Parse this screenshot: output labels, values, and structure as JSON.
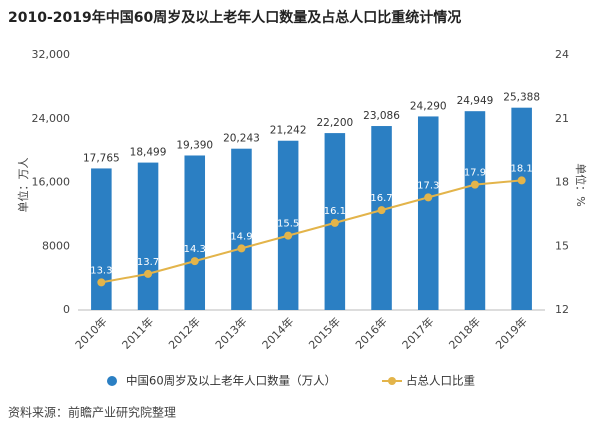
{
  "chart_data": {
    "type": "bar",
    "title": "2010-2019年中国60周岁及以上老年人口数量及占总人口比重统计情况",
    "y_label": "单位：万人",
    "y2_label": "单位：%",
    "source": "资料来源：前瞻产业研究院整理",
    "categories": [
      "2010年",
      "2011年",
      "2012年",
      "2013年",
      "2014年",
      "2015年",
      "2016年",
      "2017年",
      "2018年",
      "2019年"
    ],
    "series": [
      {
        "name": "中国60周岁及以上老年人口数量（万人）",
        "color": "#2b7fc3",
        "type": "bar",
        "values": [
          17765,
          18499,
          19390,
          20243,
          21242,
          22200,
          23086,
          24290,
          24949,
          25388
        ],
        "value_labels": [
          "17,765",
          "18,499",
          "19,390",
          "20,243",
          "21,242",
          "22,200",
          "23,086",
          "24,290",
          "24,949",
          "25,388"
        ]
      },
      {
        "name": "占总人口比重",
        "color": "#e3b44a",
        "type": "line",
        "axis": "y2",
        "values": [
          13.3,
          13.7,
          14.3,
          14.9,
          15.5,
          16.1,
          16.7,
          17.3,
          17.9,
          18.1
        ]
      }
    ],
    "ylim": [
      0,
      32000
    ],
    "yticks": [
      0,
      8000,
      {
        "value": 16000,
        "label": "16,000"
      },
      {
        "value": 24000,
        "label": "24,000"
      },
      {
        "value": 32000,
        "label": "32,000"
      }
    ],
    "y2lim": [
      12,
      24
    ],
    "y2ticks": [
      12,
      15,
      18,
      21,
      24
    ],
    "grid": false
  }
}
